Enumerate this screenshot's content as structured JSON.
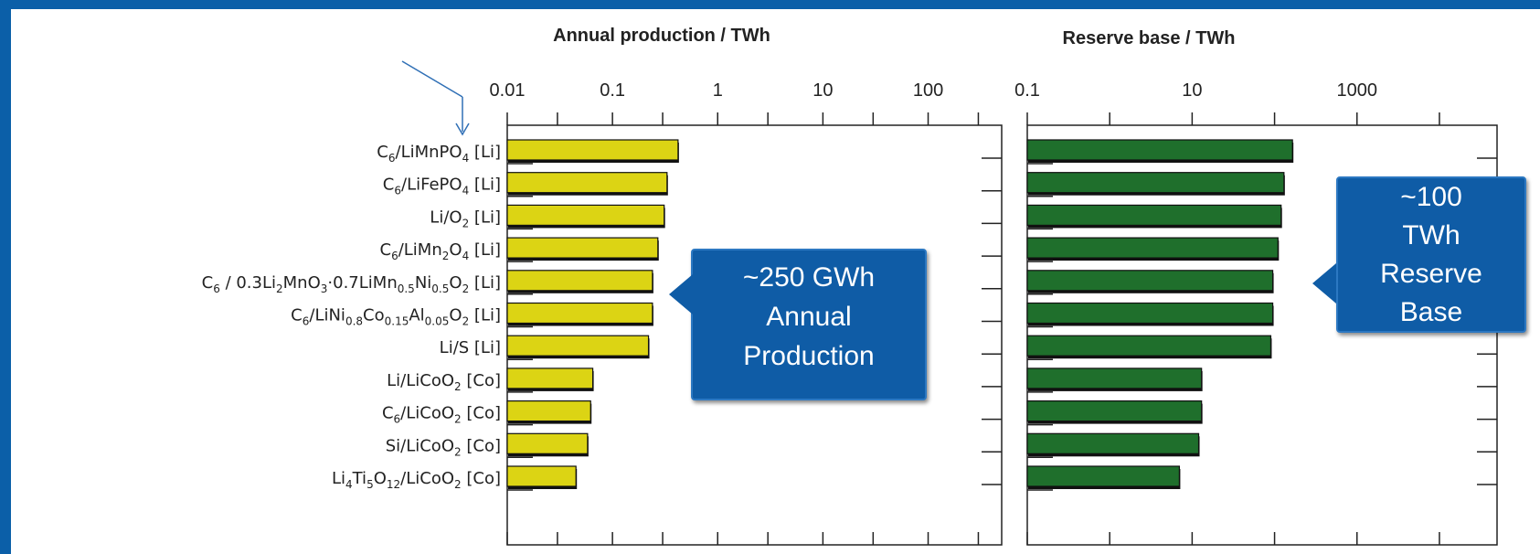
{
  "chart_data": [
    {
      "type": "bar",
      "orientation": "horizontal",
      "title": "Annual production / TWh",
      "x_scale": "log",
      "xlim": [
        0.01,
        500
      ],
      "x_ticks": [
        "0.01",
        "0.1",
        "1",
        "10",
        "100"
      ],
      "categories": [
        "C6/LiMnPO4 [Li]",
        "C6/LiFePO4 [Li]",
        "Li/O2 [Li]",
        "C6/LiMn2O4 [Li]",
        "C6 / 0.3Li2MnO3·0.7LiMn0.5Ni0.5O2 [Li]",
        "C6/LiNi0.8Co0.15Al0.05O2 [Li]",
        "Li/S [Li]",
        "Li/LiCoO2 [Co]",
        "C6/LiCoO2 [Co]",
        "Si/LiCoO2 [Co]",
        "Li4Ti5O12/LiCoO2 [Co]"
      ],
      "values": [
        0.42,
        0.33,
        0.31,
        0.27,
        0.24,
        0.24,
        0.22,
        0.065,
        0.062,
        0.058,
        0.045
      ],
      "bar_color": "#dcd414",
      "grid": false
    },
    {
      "type": "bar",
      "orientation": "horizontal",
      "title": "Reserve base / TWh",
      "x_scale": "log",
      "xlim": [
        0.1,
        50000
      ],
      "x_ticks": [
        "0.1",
        "10",
        "1000"
      ],
      "values": [
        165,
        130,
        120,
        110,
        95,
        95,
        90,
        13,
        13,
        12,
        7
      ],
      "bar_color": "#1f6f2c",
      "grid": false
    }
  ],
  "callouts": {
    "production": {
      "line1": "~250 GWh",
      "line2": "Annual",
      "line3": "Production"
    },
    "reserve": {
      "line1": "~100",
      "line2": "TWh",
      "line3": "Reserve",
      "line4": "Base"
    }
  },
  "colors": {
    "background": "#0b5fa8",
    "callout": "#0f5ca6"
  }
}
